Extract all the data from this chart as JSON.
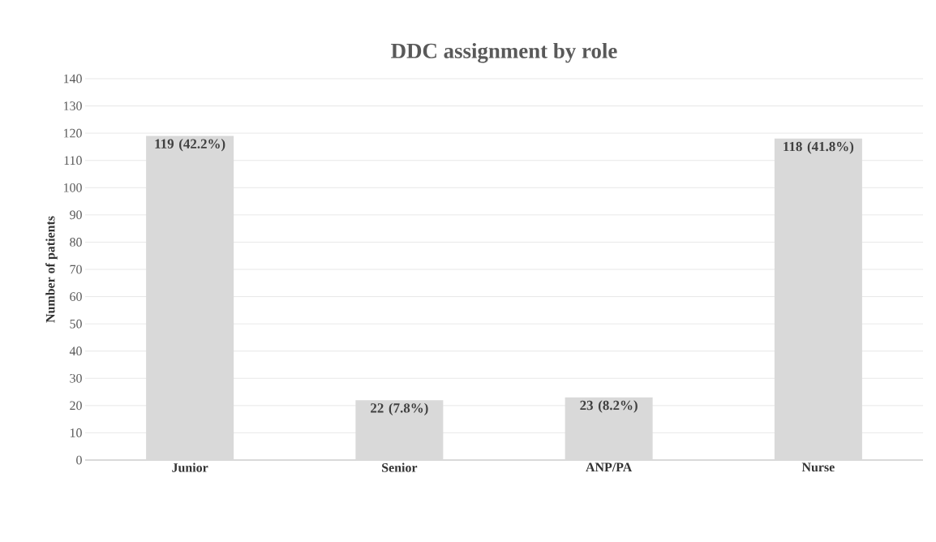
{
  "chart_data": {
    "type": "bar",
    "title": "DDC assignment by role",
    "ylabel": "Number of patients",
    "categories": [
      "Junior",
      "Senior",
      "ANP/PA",
      "Nurse"
    ],
    "values": [
      119,
      22,
      23,
      118
    ],
    "value_labels": [
      "119 (42.2%)",
      "22 (7.8%)",
      "23 (8.2%)",
      "118 (41.8%)"
    ],
    "color": "#d9d9d9",
    "ylim": [
      0,
      140
    ],
    "yticks": [
      0,
      10,
      20,
      30,
      40,
      50,
      60,
      70,
      80,
      90,
      100,
      110,
      120,
      130,
      140
    ],
    "grid": "y"
  }
}
